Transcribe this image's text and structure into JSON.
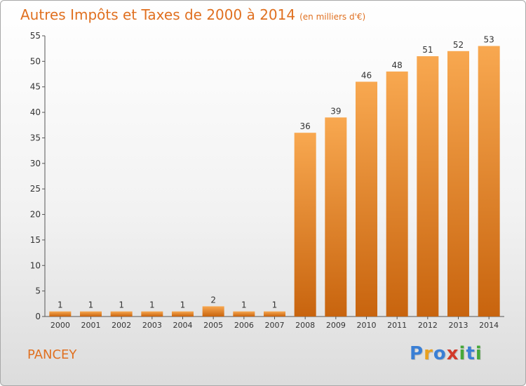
{
  "title": "Autres Impôts et Taxes de 2000 à 2014",
  "title_unit": "(en milliers d'€)",
  "commune": "PANCEY",
  "logo": {
    "text": "Proxiti",
    "letters": [
      "P",
      "r",
      "o",
      "x",
      "i",
      "t",
      "i"
    ],
    "colors": [
      "#3a7fd5",
      "#e8a020",
      "#3a7fd5",
      "#d23a2a",
      "#46a83a",
      "#3a7fd5",
      "#46a83a"
    ]
  },
  "colors": {
    "accent": "#e07020",
    "bar_light": "#f8a850",
    "bar_dark": "#c8640e"
  },
  "chart_data": {
    "type": "bar",
    "title": "Autres Impôts et Taxes de 2000 à 2014",
    "subtitle": "(en milliers d'€)",
    "xlabel": "",
    "ylabel": "",
    "categories": [
      "2000",
      "2001",
      "2002",
      "2003",
      "2004",
      "2005",
      "2006",
      "2007",
      "2008",
      "2009",
      "2010",
      "2011",
      "2012",
      "2013",
      "2014"
    ],
    "values": [
      1,
      1,
      1,
      1,
      1,
      2,
      1,
      1,
      36,
      39,
      46,
      48,
      51,
      52,
      53
    ],
    "ylim": [
      0,
      55
    ],
    "yticks": [
      0,
      5,
      10,
      15,
      20,
      25,
      30,
      35,
      40,
      45,
      50,
      55
    ],
    "grid": false,
    "legend": "none"
  }
}
